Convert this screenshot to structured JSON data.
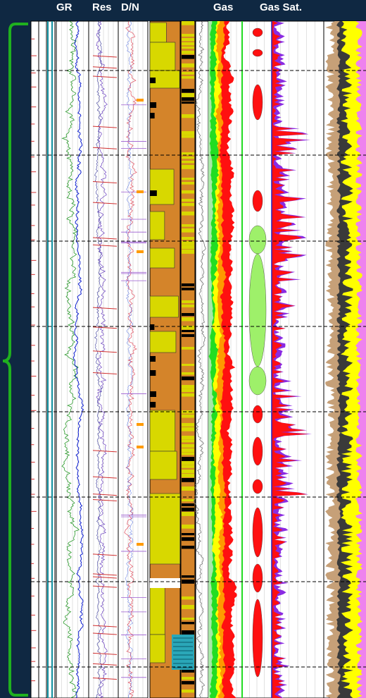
{
  "headers": {
    "gr": "GR",
    "res": "Res",
    "dn": "D/N",
    "gas": "Gas",
    "gas_sat": "Gas Sat."
  },
  "colors": {
    "background": "#0f2842",
    "bracket": "#1fb01f",
    "gr_curve_1": "#2a9a2a",
    "gr_curve_2": "#1020d0",
    "res_curve_1": "#6a40c0",
    "res_curve_2": "#d03030",
    "dn_curve_1": "#e05060",
    "dn_curve_2": "#4060e0",
    "lith_shale": "#d4842a",
    "lith_sand": "#d8d800",
    "lith_coal": "#000000",
    "gas_red": "#ff1010",
    "gas_orange": "#ff9a00",
    "gas_yellow": "#ffff00",
    "gas_green": "#22dd22",
    "gas_sat_green": "#9ef06a",
    "gas_sat_red": "#ff1010",
    "gas_sat_purple": "#8a2be2",
    "vol_brown": "#c6a078",
    "vol_dark": "#3a3a3a",
    "vol_yellow": "#ffff00",
    "vol_pink": "#ee82ee"
  },
  "chart_data": {
    "type": "well-log",
    "tracks": [
      "GR",
      "Res",
      "D/N",
      "Gas",
      "Gas Sat."
    ],
    "depth_ticks": [],
    "note_ticks_unreadable": true
  }
}
